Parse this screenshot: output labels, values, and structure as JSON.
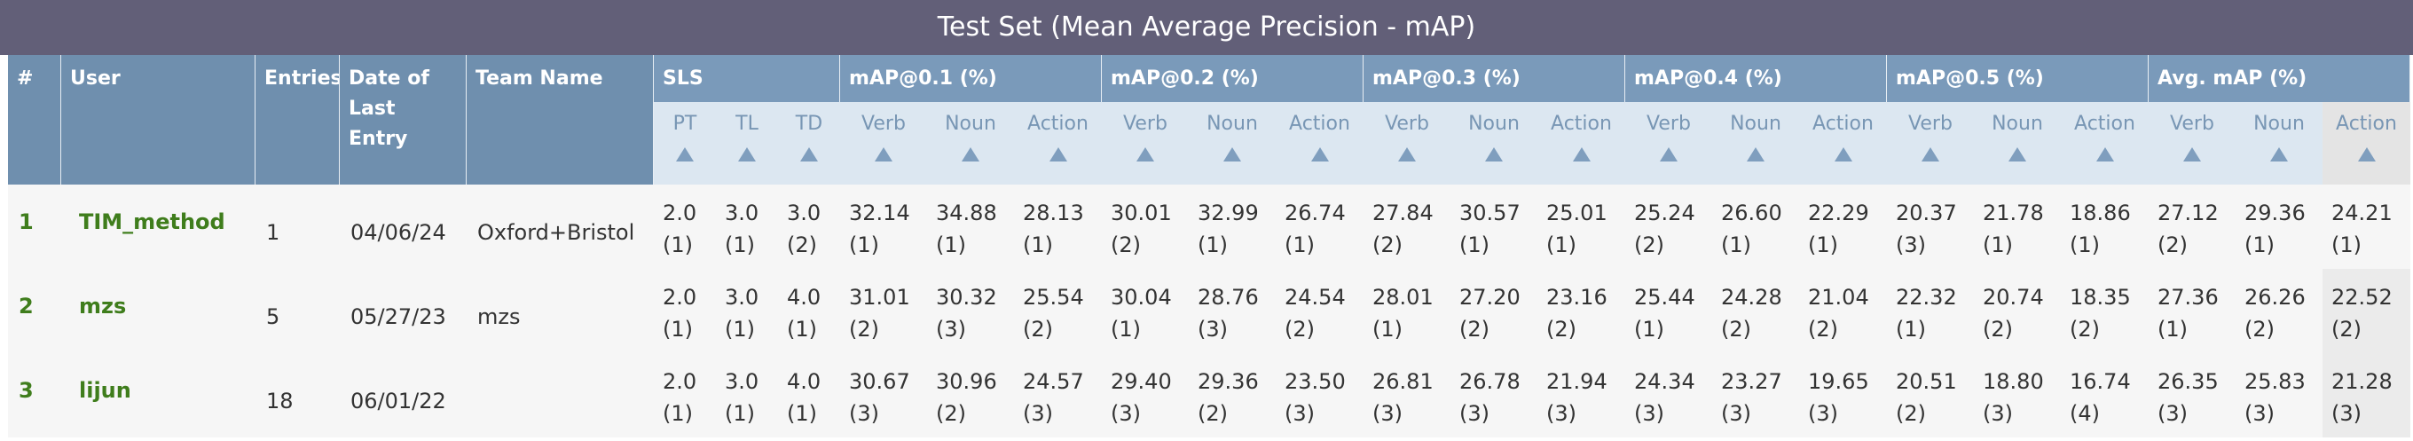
{
  "header": {
    "title": "Test Set (Mean Average Precision - mAP)"
  },
  "table": {
    "columns": [
      "#",
      "User",
      "Entries",
      "Date of Last Entry",
      "Team Name"
    ],
    "groups": [
      {
        "label": "SLS",
        "subs": [
          "PT",
          "TL",
          "TD"
        ]
      },
      {
        "label": "mAP@0.1 (%)",
        "subs": [
          "Verb",
          "Noun",
          "Action"
        ]
      },
      {
        "label": "mAP@0.2 (%)",
        "subs": [
          "Verb",
          "Noun",
          "Action"
        ]
      },
      {
        "label": "mAP@0.3 (%)",
        "subs": [
          "Verb",
          "Noun",
          "Action"
        ]
      },
      {
        "label": "mAP@0.4 (%)",
        "subs": [
          "Verb",
          "Noun",
          "Action"
        ]
      },
      {
        "label": "mAP@0.5 (%)",
        "subs": [
          "Verb",
          "Noun",
          "Action"
        ]
      },
      {
        "label": "Avg. mAP (%)",
        "subs": [
          "Verb",
          "Noun",
          "Action"
        ]
      }
    ],
    "rows": [
      {
        "rank": 1,
        "user": "TIM_method",
        "entries": 1,
        "date": "04/06/24",
        "team": "Oxford+Bristol",
        "scores": [
          [
            "2.0",
            "(1)"
          ],
          [
            "3.0",
            "(1)"
          ],
          [
            "3.0",
            "(2)"
          ],
          [
            "32.14",
            "(1)"
          ],
          [
            "34.88",
            "(1)"
          ],
          [
            "28.13",
            "(1)"
          ],
          [
            "30.01",
            "(2)"
          ],
          [
            "32.99",
            "(1)"
          ],
          [
            "26.74",
            "(1)"
          ],
          [
            "27.84",
            "(2)"
          ],
          [
            "30.57",
            "(1)"
          ],
          [
            "25.01",
            "(1)"
          ],
          [
            "25.24",
            "(2)"
          ],
          [
            "26.60",
            "(1)"
          ],
          [
            "22.29",
            "(1)"
          ],
          [
            "20.37",
            "(3)"
          ],
          [
            "21.78",
            "(1)"
          ],
          [
            "18.86",
            "(1)"
          ],
          [
            "27.12",
            "(2)"
          ],
          [
            "29.36",
            "(1)"
          ],
          [
            "24.21",
            "(1)"
          ]
        ]
      },
      {
        "rank": 2,
        "user": "mzs",
        "entries": 5,
        "date": "05/27/23",
        "team": "mzs",
        "scores": [
          [
            "2.0",
            "(1)"
          ],
          [
            "3.0",
            "(1)"
          ],
          [
            "4.0",
            "(1)"
          ],
          [
            "31.01",
            "(2)"
          ],
          [
            "30.32",
            "(3)"
          ],
          [
            "25.54",
            "(2)"
          ],
          [
            "30.04",
            "(1)"
          ],
          [
            "28.76",
            "(3)"
          ],
          [
            "24.54",
            "(2)"
          ],
          [
            "28.01",
            "(1)"
          ],
          [
            "27.20",
            "(2)"
          ],
          [
            "23.16",
            "(2)"
          ],
          [
            "25.44",
            "(1)"
          ],
          [
            "24.28",
            "(2)"
          ],
          [
            "21.04",
            "(2)"
          ],
          [
            "22.32",
            "(1)"
          ],
          [
            "20.74",
            "(2)"
          ],
          [
            "18.35",
            "(2)"
          ],
          [
            "27.36",
            "(1)"
          ],
          [
            "26.26",
            "(2)"
          ],
          [
            "22.52",
            "(2)"
          ]
        ]
      },
      {
        "rank": 3,
        "user": "lijun",
        "entries": 18,
        "date": "06/01/22",
        "scores": [
          [
            "2.0",
            "(1)"
          ],
          [
            "3.0",
            "(1)"
          ],
          [
            "4.0",
            "(1)"
          ],
          [
            "30.67",
            "(3)"
          ],
          [
            "30.96",
            "(2)"
          ],
          [
            "24.57",
            "(3)"
          ],
          [
            "29.40",
            "(3)"
          ],
          [
            "29.36",
            "(2)"
          ],
          [
            "23.50",
            "(3)"
          ],
          [
            "26.81",
            "(3)"
          ],
          [
            "26.78",
            "(3)"
          ],
          [
            "21.94",
            "(3)"
          ],
          [
            "24.34",
            "(3)"
          ],
          [
            "23.27",
            "(3)"
          ],
          [
            "19.65",
            "(3)"
          ],
          [
            "20.51",
            "(2)"
          ],
          [
            "18.80",
            "(3)"
          ],
          [
            "16.74",
            "(4)"
          ],
          [
            "26.35",
            "(3)"
          ],
          [
            "25.83",
            "(3)"
          ],
          [
            "21.28",
            "(3)"
          ]
        ]
      }
    ]
  }
}
